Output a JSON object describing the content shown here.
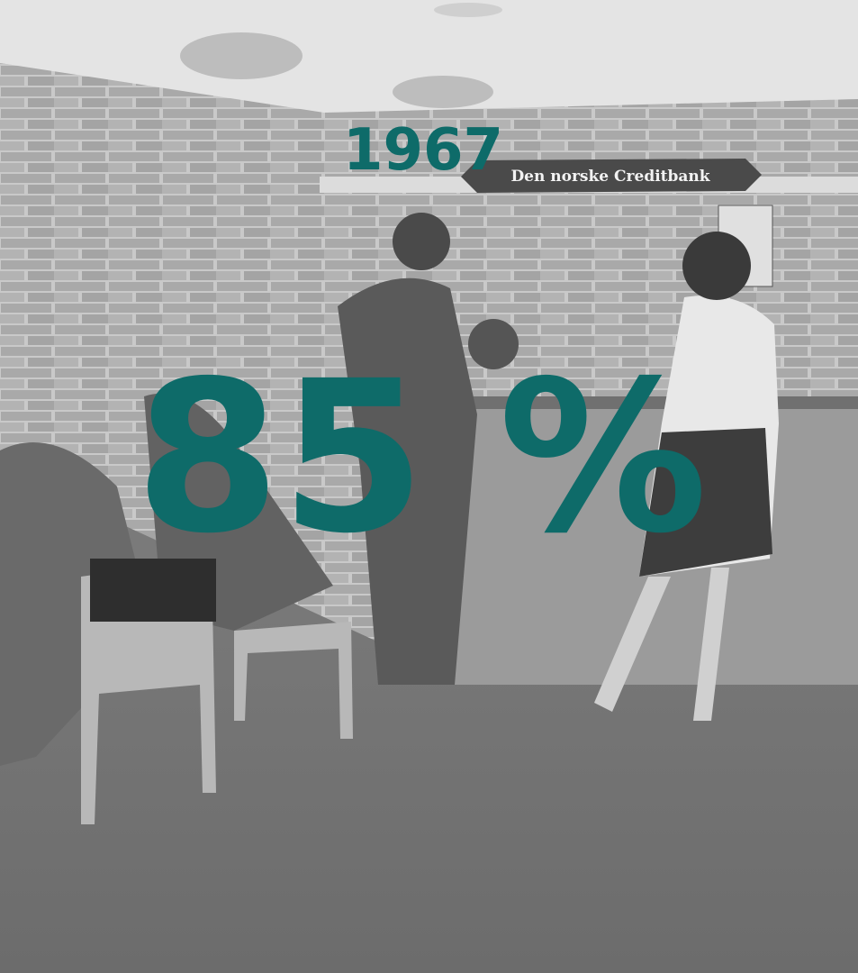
{
  "year": "1967",
  "headline": "85 %",
  "photo": {
    "sign": "Den norske Creditbank"
  }
}
